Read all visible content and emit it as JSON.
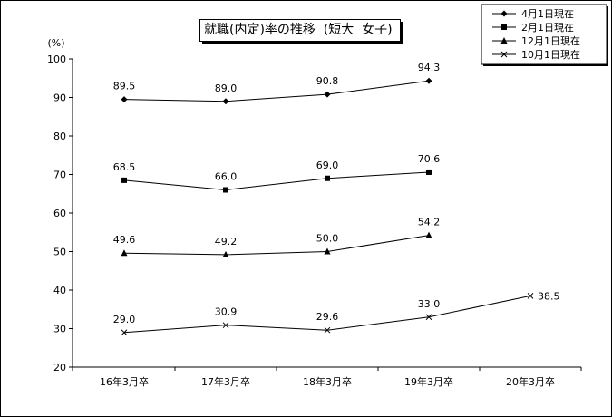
{
  "chart_data": {
    "type": "line",
    "title": "就職(内定)率の推移  (短大  女子)",
    "ylabel": "(%)",
    "ylim": [
      20,
      100
    ],
    "yticks": [
      20,
      30,
      40,
      50,
      60,
      70,
      80,
      90,
      100
    ],
    "grid": false,
    "legend_position": "top-right",
    "categories": [
      "16年3月卒",
      "17年3月卒",
      "18年3月卒",
      "19年3月卒",
      "20年3月卒"
    ],
    "series": [
      {
        "name": "4月1日現在",
        "marker": "diamond",
        "values": [
          89.5,
          89.0,
          90.8,
          94.3,
          null
        ],
        "labels": [
          "89.5",
          "89.0",
          "90.8",
          "94.3",
          null
        ]
      },
      {
        "name": "2月1日現在",
        "marker": "square",
        "values": [
          68.5,
          66.0,
          69.0,
          70.6,
          null
        ],
        "labels": [
          "68.5",
          "66.0",
          "69.0",
          "70.6",
          null
        ]
      },
      {
        "name": "12月1日現在",
        "marker": "triangle",
        "values": [
          49.6,
          49.2,
          50.0,
          54.2,
          null
        ],
        "labels": [
          "49.6",
          "49.2",
          "50.0",
          "54.2",
          null
        ]
      },
      {
        "name": "10月1日現在",
        "marker": "x",
        "values": [
          29.0,
          30.9,
          29.6,
          33.0,
          38.5
        ],
        "labels": [
          "29.0",
          "30.9",
          "29.6",
          "33.0",
          "38.5"
        ]
      }
    ]
  }
}
